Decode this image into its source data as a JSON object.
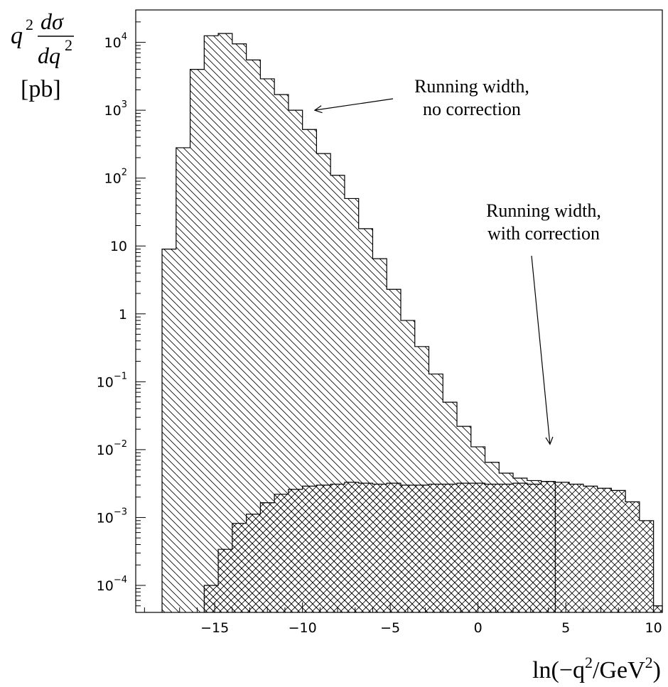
{
  "chart_data": {
    "type": "histogram",
    "y_scale": "log",
    "xlim": [
      -19.5,
      10.5
    ],
    "ylim": [
      4e-05,
      30000
    ],
    "x_ticks": [
      {
        "value": -15,
        "label": "−15"
      },
      {
        "value": -10,
        "label": "−10"
      },
      {
        "value": -5,
        "label": "−5"
      },
      {
        "value": 0,
        "label": "0"
      },
      {
        "value": 5,
        "label": "5"
      },
      {
        "value": 10,
        "label": "10"
      }
    ],
    "y_ticks": [
      {
        "value": 0.0001,
        "base": "10",
        "exp": "−4"
      },
      {
        "value": 0.001,
        "base": "10",
        "exp": "−3"
      },
      {
        "value": 0.01,
        "base": "10",
        "exp": "−2"
      },
      {
        "value": 0.1,
        "base": "10",
        "exp": "−1"
      },
      {
        "value": 1,
        "base": "1",
        "exp": ""
      },
      {
        "value": 10,
        "base": "10",
        "exp": ""
      },
      {
        "value": 100,
        "base": "10",
        "exp": "2"
      },
      {
        "value": 1000,
        "base": "10",
        "exp": "3"
      },
      {
        "value": 10000,
        "base": "10",
        "exp": "4"
      }
    ],
    "ylabel": {
      "q": "q",
      "sup": "2",
      "num": "dσ",
      "den_d": "dq",
      "den_sup": "2",
      "unit": "[pb]"
    },
    "xlabel": {
      "pre": "ln(−q",
      "sup1": "2",
      "mid": "/GeV",
      "sup2": "2",
      "post": ")"
    },
    "series": [
      {
        "name": "Running width, no correction",
        "hatch": "single",
        "bin_edges": [
          -18,
          -17.2,
          -16.4,
          -15.6,
          -14.8,
          -14,
          -13.2,
          -12.4,
          -11.6,
          -10.8,
          -10,
          -9.2,
          -8.4,
          -7.6,
          -6.8,
          -6,
          -5.2,
          -4.4,
          -3.6,
          -2.8,
          -2,
          -1.2,
          -0.4,
          0.4,
          1.2,
          2,
          2.8,
          3.6,
          4.4
        ],
        "values": [
          9,
          280,
          4000,
          12500,
          13500,
          9500,
          5500,
          2900,
          1700,
          1000,
          520,
          230,
          110,
          50,
          18,
          6.5,
          2.3,
          0.8,
          0.33,
          0.13,
          0.05,
          0.022,
          0.011,
          0.0065,
          0.0045,
          0.0038,
          0.0035,
          0.0034
        ]
      },
      {
        "name": "Running width, with correction",
        "hatch": "cross",
        "bin_edges": [
          -15.6,
          -14.8,
          -14,
          -13.2,
          -12.4,
          -11.6,
          -10.8,
          -10,
          -9.2,
          -8.4,
          -7.6,
          -6.8,
          -6,
          -5.2,
          -4.4,
          -3.6,
          -2.8,
          -2,
          -1.2,
          -0.4,
          0.4,
          1.2,
          2,
          2.8,
          3.6,
          4.4,
          5.2,
          6,
          6.8,
          7.6,
          8.4,
          9.2,
          10,
          10.5
        ],
        "values": [
          0.0001,
          0.00034,
          0.00082,
          0.00112,
          0.00165,
          0.0022,
          0.0026,
          0.0029,
          0.003,
          0.0031,
          0.0033,
          0.0032,
          0.0031,
          0.0032,
          0.003,
          0.003,
          0.0031,
          0.0031,
          0.0032,
          0.0032,
          0.0031,
          0.0031,
          0.0032,
          0.0031,
          0.0034,
          0.0033,
          0.0031,
          0.0029,
          0.0027,
          0.0025,
          0.0017,
          0.0009,
          5e-05
        ]
      }
    ],
    "annotations": [
      {
        "lines": [
          "Running width,",
          "no correction"
        ],
        "arrow_to": {
          "x": -9.3,
          "y": 1000
        }
      },
      {
        "lines": [
          "Running width,",
          "with correction"
        ],
        "arrow_to": {
          "x": 4.1,
          "y": 0.012
        }
      }
    ]
  }
}
